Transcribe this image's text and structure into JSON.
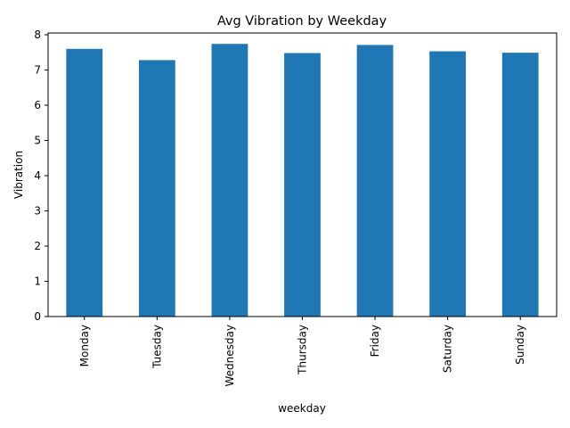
{
  "chart_data": {
    "type": "bar",
    "title": "Avg Vibration by Weekday",
    "xlabel": "weekday",
    "ylabel": "Vibration",
    "categories": [
      "Monday",
      "Tuesday",
      "Wednesday",
      "Thursday",
      "Friday",
      "Saturday",
      "Sunday"
    ],
    "values": [
      7.6,
      7.28,
      7.74,
      7.48,
      7.71,
      7.53,
      7.49
    ],
    "ylim": [
      0,
      8.05
    ],
    "yticks": [
      0,
      1,
      2,
      3,
      4,
      5,
      6,
      7,
      8
    ],
    "grid": false,
    "legend": "none",
    "bar_color": "#1f77b4"
  }
}
